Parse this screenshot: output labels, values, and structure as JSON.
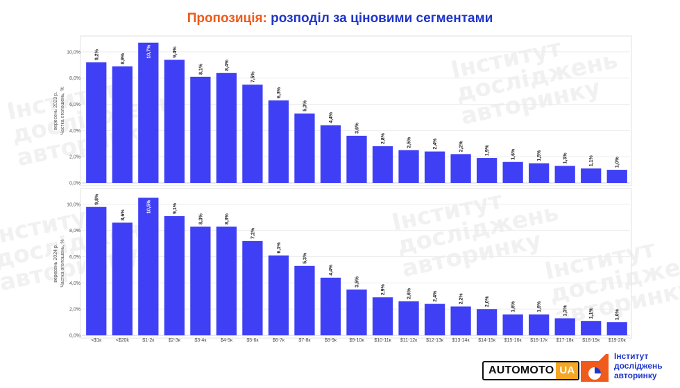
{
  "header": {
    "title_accent": "Пропозиція:",
    "title_rest": "розподіл за ціновими сегментами"
  },
  "watermark": {
    "text": "Інститут\nдосліджень\nавторинку"
  },
  "colors": {
    "bar": "#3f3ff6",
    "title": "#1f36c9",
    "accent": "#f05a1a",
    "ua_badge": "#f5a623"
  },
  "footer": {
    "automoto_text": "AUTOMOTO",
    "automoto_badge": "UA",
    "institute_line1": "Інститут",
    "institute_line2": "досліджень",
    "institute_line3": "авторинку"
  },
  "chart_data": [
    {
      "type": "bar",
      "ylabel": "вересень 2023 р.\nЧастка оголошень, %",
      "ylim": [
        0,
        11
      ],
      "yticks": [
        "0,0%",
        "2,0%",
        "4,0%",
        "6,0%",
        "8,0%",
        "10,0%"
      ],
      "categories": [
        "<$1к",
        "<$20k",
        "$1-2к",
        "$2-3к",
        "$3-4к",
        "$4-5к",
        "$5-6к",
        "$6-7к",
        "$7-8к",
        "$8-9к",
        "$9-10к",
        "$10-11к",
        "$11-12к",
        "$12-13к",
        "$13-14к",
        "$14-15к",
        "$15-16к",
        "$16-17к",
        "$17-18к",
        "$18-19к",
        "$19-20к"
      ],
      "values": [
        9.2,
        8.9,
        10.7,
        9.4,
        8.1,
        8.4,
        7.5,
        6.3,
        5.3,
        4.4,
        3.6,
        2.8,
        2.5,
        2.4,
        2.2,
        1.9,
        1.6,
        1.5,
        1.3,
        1.1,
        1.0
      ],
      "labels": [
        "9,2%",
        "8,9%",
        "10,7%",
        "9,4%",
        "8,1%",
        "8,4%",
        "7,5%",
        "6,3%",
        "5,3%",
        "4,4%",
        "3,6%",
        "2,8%",
        "2,5%",
        "2,4%",
        "2,2%",
        "1,9%",
        "1,6%",
        "1,5%",
        "1,3%",
        "1,1%",
        "1,0%"
      ]
    },
    {
      "type": "bar",
      "ylabel": "вересень 2024 р.\nЧастка оголошень, %",
      "ylim": [
        0,
        11
      ],
      "yticks": [
        "0,0%",
        "2,0%",
        "4,0%",
        "6,0%",
        "8,0%",
        "10,0%"
      ],
      "categories": [
        "<$1к",
        "<$20k",
        "$1-2к",
        "$2-3к",
        "$3-4к",
        "$4-5к",
        "$5-6к",
        "$6-7к",
        "$7-8к",
        "$8-9к",
        "$9-10к",
        "$10-11к",
        "$11-12к",
        "$12-13к",
        "$13-14к",
        "$14-15к",
        "$15-16к",
        "$16-17к",
        "$17-18к",
        "$18-19к",
        "$19-20к"
      ],
      "values": [
        9.8,
        8.6,
        10.5,
        9.1,
        8.3,
        8.3,
        7.2,
        6.1,
        5.3,
        4.4,
        3.5,
        2.9,
        2.6,
        2.4,
        2.2,
        2.0,
        1.6,
        1.6,
        1.3,
        1.1,
        1.0
      ],
      "labels": [
        "9,8%",
        "8,6%",
        "10,5%",
        "9,1%",
        "8,3%",
        "8,3%",
        "7,2%",
        "6,1%",
        "5,3%",
        "4,4%",
        "3,5%",
        "2,9%",
        "2,6%",
        "2,4%",
        "2,2%",
        "2,0%",
        "1,6%",
        "1,6%",
        "1,3%",
        "1,1%",
        "1,0%"
      ]
    }
  ]
}
